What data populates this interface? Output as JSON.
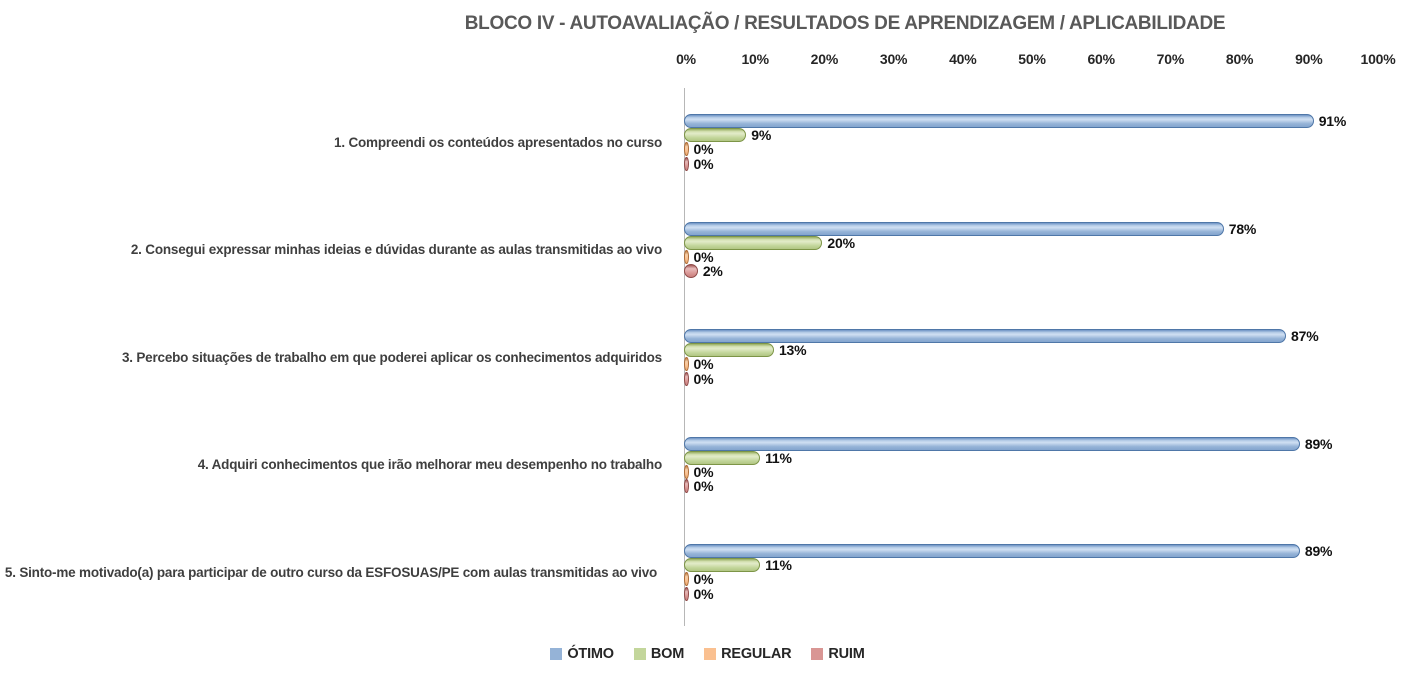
{
  "chart_data": {
    "type": "bar",
    "orientation": "horizontal",
    "title": "BLOCO IV - AUTOAVALIAÇÃO / RESULTADOS DE APRENDIZAGEM / APLICABILIDADE",
    "categories": [
      "1. Compreendi os conteúdos apresentados no curso",
      "2. Consegui expressar minhas ideias e dúvidas durante as aulas transmitidas ao vivo",
      "3. Percebo situações de trabalho em que poderei aplicar os conhecimentos adquiridos",
      "4. Adquiri conhecimentos que irão melhorar meu desempenho no trabalho",
      "5. Sinto-me motivado(a) para participar de outro curso da ESFOSUAS/PE com aulas transmitidas ao vivo"
    ],
    "series": [
      {
        "name": "ÓTIMO",
        "color": "#95b3d7",
        "values": [
          91,
          78,
          87,
          89,
          89
        ]
      },
      {
        "name": "BOM",
        "color": "#c3d69b",
        "values": [
          9,
          20,
          13,
          11,
          11
        ]
      },
      {
        "name": "REGULAR",
        "color": "#fac090",
        "values": [
          0,
          0,
          0,
          0,
          0
        ]
      },
      {
        "name": "RUIM",
        "color": "#d99694",
        "values": [
          0,
          2,
          0,
          0,
          0
        ]
      }
    ],
    "value_label_suffix": "%",
    "x_ticks": [
      "0%",
      "10%",
      "20%",
      "30%",
      "40%",
      "50%",
      "60%",
      "70%",
      "80%",
      "90%",
      "100%"
    ],
    "xlim": [
      0,
      100
    ],
    "grid": false,
    "legend_position": "bottom",
    "colors": {
      "title_text": "#595959",
      "axis_line": "#b7b7b7",
      "label_text": "#3f3f3f"
    }
  }
}
